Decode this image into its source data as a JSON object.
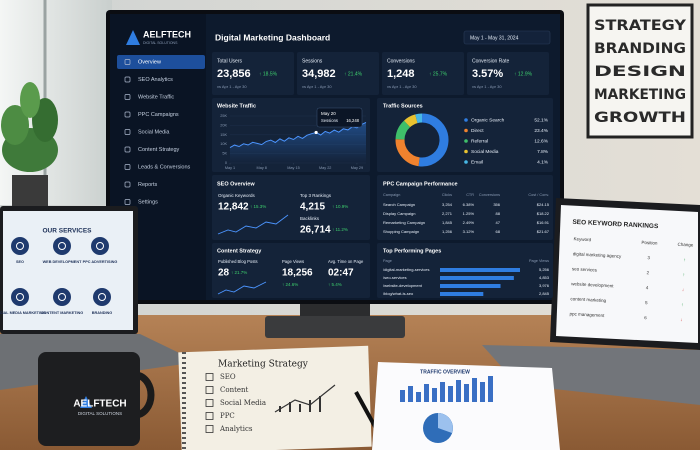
{
  "poster": {
    "lines": [
      "STRATEGY",
      "BRANDING",
      "DESIGN",
      "MARKETING",
      "GROWTH"
    ]
  },
  "dashboard": {
    "brand": {
      "name": "AELFTECH",
      "tagline": "DIGITAL SOLUTIONS"
    },
    "title": "Digital Marketing Dashboard",
    "date_range": "May 1 - May 31, 2024",
    "nav": [
      "Overview",
      "SEO Analytics",
      "Website Traffic",
      "PPC Campaigns",
      "Social Media",
      "Content Strategy",
      "Leads & Conversions",
      "Reports",
      "Settings"
    ],
    "kpis": [
      {
        "label": "Total Users",
        "value": "23,856",
        "change": "↑ 18.5%",
        "compare": "vs Apr 1 - Apr 30"
      },
      {
        "label": "Sessions",
        "value": "34,982",
        "change": "↑ 21.4%",
        "compare": "vs Apr 1 - Apr 30"
      },
      {
        "label": "Conversions",
        "value": "1,248",
        "change": "↑ 25.7%",
        "compare": "vs Apr 1 - Apr 30"
      },
      {
        "label": "Conversion Rate",
        "value": "3.57%",
        "change": "↑ 12.9%",
        "compare": "vs Apr 1 - Apr 30"
      }
    ],
    "website_traffic": {
      "title": "Website Traffic",
      "x": [
        1,
        2,
        3,
        4,
        5,
        6,
        7,
        8,
        9,
        10,
        11,
        12,
        13,
        14,
        15,
        16,
        17,
        18,
        19,
        20,
        21,
        22,
        23,
        24,
        25,
        26,
        27,
        28,
        29,
        30,
        31
      ],
      "values": [
        8200,
        9500,
        8800,
        10200,
        9600,
        11000,
        10400,
        9800,
        11500,
        12200,
        10900,
        12800,
        11600,
        13400,
        12500,
        14200,
        13100,
        14800,
        15600,
        16248,
        14900,
        16800,
        15900,
        17500,
        16400,
        18200,
        17600,
        19300,
        18700,
        20400,
        21600
      ],
      "xlim": [
        1,
        31
      ],
      "ylim": [
        0,
        25000
      ],
      "yticks": [
        {
          "value": 0,
          "label": "0"
        },
        {
          "value": 5000,
          "label": "5K"
        },
        {
          "value": 10000,
          "label": "10K"
        },
        {
          "value": 15000,
          "label": "15K"
        },
        {
          "value": 20000,
          "label": "20K"
        },
        {
          "value": 25000,
          "label": "25K"
        }
      ],
      "xticks": [
        {
          "value": 1,
          "label": "May 1"
        },
        {
          "value": 8,
          "label": "May 8"
        },
        {
          "value": 15,
          "label": "May 15"
        },
        {
          "value": 22,
          "label": "May 22"
        },
        {
          "value": 29,
          "label": "May 29"
        }
      ],
      "tooltip": {
        "date": "May 20",
        "label": "Sessions",
        "value": "16,248"
      }
    },
    "traffic_sources": {
      "title": "Traffic Sources",
      "items": [
        {
          "name": "Organic Search",
          "value": 52.1,
          "label": "52.1%",
          "color": "#2f7de1"
        },
        {
          "name": "Direct",
          "value": 23.4,
          "label": "23.4%",
          "color": "#f0822e"
        },
        {
          "name": "Referral",
          "value": 12.6,
          "label": "12.6%",
          "color": "#3fbf6a"
        },
        {
          "name": "Social Media",
          "value": 7.8,
          "label": "7.8%",
          "color": "#e8c230"
        },
        {
          "name": "Email",
          "value": 4.1,
          "label": "4.1%",
          "color": "#48b8e6"
        }
      ]
    },
    "seo_overview": {
      "title": "SEO Overview",
      "metrics": [
        {
          "label": "Organic Keywords",
          "value": "12,842",
          "change": "↑ 15.3%"
        },
        {
          "label": "Top 3 Rankings",
          "value": "4,215",
          "change": "↑ 10.9%"
        },
        {
          "label": "Backlinks",
          "value": "26,714",
          "change": "↑ 11.2%"
        }
      ]
    },
    "ppc": {
      "title": "PPC Campaign Performance",
      "columns": [
        "Campaign",
        "Clicks",
        "CTR",
        "Conversions",
        "Cost / Conv."
      ],
      "rows": [
        [
          "Search Campaign",
          "3,254",
          "6.38%",
          "356",
          "$24.15"
        ],
        [
          "Display Campaign",
          "2,271",
          "1.25%",
          "88",
          "$18.22"
        ],
        [
          "Remarketing Campaign",
          "1,845",
          "2.49%",
          "47",
          "$16.91"
        ],
        [
          "Shopping Campaign",
          "1,256",
          "3.12%",
          "68",
          "$21.67"
        ]
      ]
    },
    "content_strategy": {
      "title": "Content Strategy",
      "metrics": [
        {
          "label": "Published Blog Posts",
          "value": "28",
          "change": "↑ 21.7%"
        },
        {
          "label": "Page Views",
          "value": "18,256",
          "change": "↑ 24.6%"
        },
        {
          "label": "Avg. Time on Page",
          "value": "02:47",
          "change": "↑ 5.4%"
        }
      ]
    },
    "top_pages": {
      "title": "Top Performing Pages",
      "columns": [
        "Page",
        "Page Views"
      ],
      "rows": [
        {
          "page": "/digital-marketing-services",
          "views": 5256,
          "label": "5,256"
        },
        {
          "page": "/seo-services",
          "views": 4853,
          "label": "4,853"
        },
        {
          "page": "/website-development",
          "views": 3976,
          "label": "3,976"
        },
        {
          "page": "/blog/what-is-seo",
          "views": 2845,
          "label": "2,845"
        }
      ]
    }
  },
  "services_laptop": {
    "title": "OUR SERVICES",
    "items": [
      "SEO",
      "WEB DEVELOPMENT",
      "PPC ADVERTISING",
      "SOCIAL MEDIA MARKETING",
      "CONTENT MARKETING",
      "BRANDING"
    ]
  },
  "rankings_laptop": {
    "title": "SEO KEYWORD RANKINGS",
    "columns": [
      "Keyword",
      "Position",
      "Change"
    ],
    "rows": [
      [
        "digital marketing agency",
        "3",
        "↑"
      ],
      [
        "seo services",
        "2",
        "↑"
      ],
      [
        "website development",
        "4",
        "↓"
      ],
      [
        "content marketing",
        "5",
        "↑"
      ],
      [
        "ppc management",
        "6",
        "↓"
      ]
    ]
  },
  "mug": {
    "brand": "AELFTECH",
    "tagline": "DIGITAL SOLUTIONS"
  },
  "notebook": {
    "title": "Marketing Strategy",
    "items": [
      "SEO",
      "Content",
      "Social Media",
      "PPC",
      "Analytics"
    ]
  },
  "report": {
    "title": "TRAFFIC OVERVIEW"
  }
}
